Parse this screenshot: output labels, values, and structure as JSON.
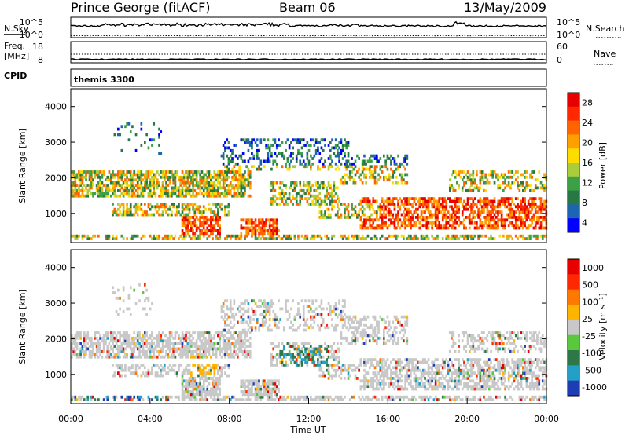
{
  "header": {
    "station": "Prince George (fitACF)",
    "beam": "Beam 06",
    "date": "13/May/2009",
    "cpid_value": "themis 3300"
  },
  "labels": {
    "nsky": "N.Sky",
    "nsearch": "N.Search",
    "freq_line1": "Freq.",
    "freq_line2": "[MHz]",
    "nave": "Nave",
    "cpid": "CPID"
  },
  "colors": {
    "data_line": "#000000",
    "frame": "#000000",
    "background": "#ffffff"
  },
  "chart_data": [
    {
      "type": "line",
      "name": "noise-panel",
      "left_axis_ticks": [
        "10^5",
        "10^0"
      ],
      "right_axis_ticks": [
        "10^5",
        "10^0"
      ],
      "left_series": "N.Sky",
      "right_series": "N.Search",
      "x_range": [
        "00:00",
        "24:00"
      ]
    },
    {
      "type": "line",
      "name": "frequency-nave-panel",
      "left_axis_ticks": [
        "18",
        "8"
      ],
      "right_axis_ticks": [
        "60",
        "0"
      ],
      "left_series": "Freq.",
      "right_series": "Nave",
      "x_range": [
        "00:00",
        "24:00"
      ]
    },
    {
      "type": "heatmap",
      "name": "power",
      "ylabel": "Slant Range [km]",
      "ylim": [
        180,
        4500
      ],
      "yticks": [
        1000,
        2000,
        3000,
        4000
      ],
      "colorbar_label": "Power [dB]",
      "colorbar_ticks": [
        "28",
        "24",
        "20",
        "16",
        "12",
        "8",
        "4"
      ],
      "colorscale": [
        "#0000ff",
        "#1e64b4",
        "#287846",
        "#3ca046",
        "#aacd3c",
        "#ffdc00",
        "#ffa000",
        "#ff6400",
        "#ff2800",
        "#e60000"
      ]
    },
    {
      "type": "heatmap",
      "name": "velocity",
      "ylabel": "Slant Range [km]",
      "ylim": [
        180,
        4500
      ],
      "yticks": [
        1000,
        2000,
        3000,
        4000
      ],
      "xlabel": "Time UT",
      "xticks": [
        "00:00",
        "04:00",
        "08:00",
        "12:00",
        "16:00",
        "20:00",
        "00:00"
      ],
      "colorbar_label": "Velocity [m s⁻¹]",
      "colorbar_ticks": [
        "1000",
        "500",
        "100",
        "25",
        "-25",
        "-100",
        "-500",
        "-1000"
      ],
      "colorscale": [
        "#1e3cb4",
        "#23a0c8",
        "#2d7846",
        "#5ac83c",
        "#c8c8c8",
        "#ffb400",
        "#ff7800",
        "#ff2800",
        "#e60000"
      ]
    }
  ]
}
